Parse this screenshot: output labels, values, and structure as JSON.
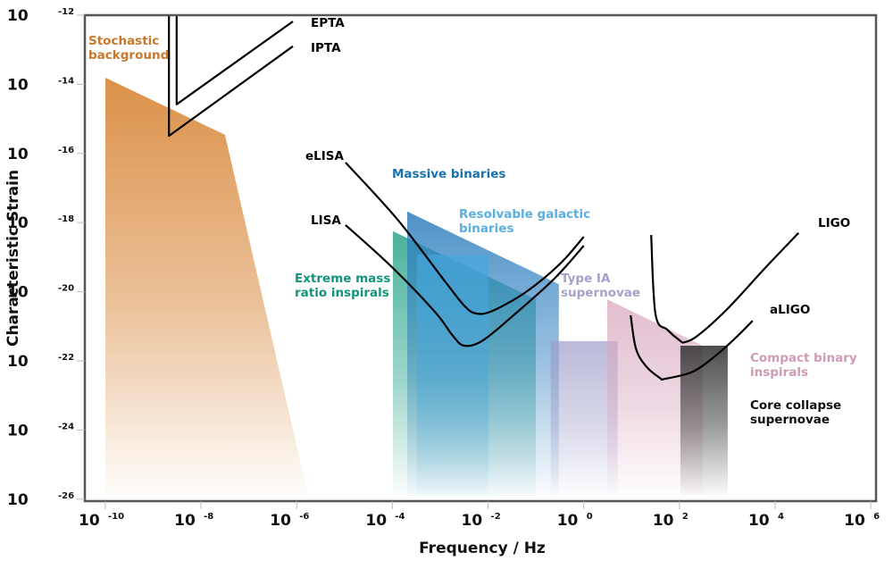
{
  "chart_data": {
    "type": "area",
    "title": "",
    "xlabel": "Frequency / Hz",
    "ylabel": "Characteristic Strain",
    "xscale": "log",
    "yscale": "log",
    "xlim_log10": [
      -10.45,
      6
    ],
    "ylim_log10": [
      -26,
      -12
    ],
    "grid": false,
    "x_ticks": [
      {
        "base": "10",
        "exp": "-10",
        "log10": -10
      },
      {
        "base": "10",
        "exp": "-8",
        "log10": -8
      },
      {
        "base": "10",
        "exp": "-6",
        "log10": -6
      },
      {
        "base": "10",
        "exp": "-4",
        "log10": -4
      },
      {
        "base": "10",
        "exp": "-2",
        "log10": -2
      },
      {
        "base": "10",
        "exp": "0",
        "log10": 0
      },
      {
        "base": "10",
        "exp": "2",
        "log10": 2
      },
      {
        "base": "10",
        "exp": "4",
        "log10": 4
      },
      {
        "base": "10",
        "exp": "6",
        "log10": 6
      }
    ],
    "y_ticks": [
      {
        "base": "10",
        "exp": "-12",
        "log10": -12
      },
      {
        "base": "10",
        "exp": "-14",
        "log10": -14
      },
      {
        "base": "10",
        "exp": "-16",
        "log10": -16
      },
      {
        "base": "10",
        "exp": "-18",
        "log10": -18
      },
      {
        "base": "10",
        "exp": "-20",
        "log10": -20
      },
      {
        "base": "10",
        "exp": "-22",
        "log10": -22
      },
      {
        "base": "10",
        "exp": "-24",
        "log10": -24
      },
      {
        "base": "10",
        "exp": "-26",
        "log10": -26
      }
    ],
    "sources": [
      {
        "name": "Stochastic background",
        "label_lines": [
          "Stochastic",
          "background"
        ],
        "color": "#d98b3f",
        "label_color": "#c8782a",
        "polygon_log10": [
          [
            -10,
            -13.81
          ],
          [
            -7.5,
            -15.46
          ],
          [
            -5.76,
            -25.9
          ],
          [
            -10,
            -25.9
          ]
        ]
      },
      {
        "name": "Extreme mass ratio inspirals",
        "label_lines": [
          "Extreme mass",
          "ratio inspirals"
        ],
        "color": "#2aa58a",
        "label_color": "#13957a",
        "polygon_log10": [
          [
            -3.99,
            -18.25
          ],
          [
            -1.0,
            -20.22
          ],
          [
            -1.0,
            -25.9
          ],
          [
            -3.99,
            -25.9
          ]
        ]
      },
      {
        "name": "Massive binaries",
        "label_lines": [
          "Massive binaries"
        ],
        "color": "#2f7fbf",
        "label_color": "#1a72ad",
        "polygon_log10": [
          [
            -3.69,
            -17.68
          ],
          [
            -0.52,
            -19.78
          ],
          [
            -0.52,
            -25.9
          ],
          [
            -3.69,
            -25.9
          ]
        ]
      },
      {
        "name": "Resolvable galactic binaries",
        "label_lines": [
          "Resolvable galactic",
          "binaries"
        ],
        "color": "#45a6dc",
        "label_color": "#5aaee0",
        "polygon_log10": [
          [
            -3.49,
            -18.93
          ],
          [
            -1.99,
            -18.93
          ],
          [
            -1.99,
            -25.9
          ],
          [
            -3.49,
            -25.9
          ]
        ]
      },
      {
        "name": "Type IA supernovae",
        "label_lines": [
          "Type IA",
          "supernovae"
        ],
        "color": "#9d9cc9",
        "label_color": "#a3a2cc",
        "polygon_log10": [
          [
            -0.69,
            -21.43
          ],
          [
            0.71,
            -21.43
          ],
          [
            0.71,
            -25.9
          ],
          [
            -0.69,
            -25.9
          ]
        ]
      },
      {
        "name": "Compact binary inspirals",
        "label_lines": [
          "Compact binary",
          "inspirals"
        ],
        "color": "#d7a6bd",
        "label_color": "#cf9ab5",
        "polygon_log10": [
          [
            0.49,
            -20.22
          ],
          [
            2.49,
            -21.56
          ],
          [
            2.49,
            -25.9
          ],
          [
            0.49,
            -25.9
          ]
        ]
      },
      {
        "name": "Core collapse supernovae",
        "label_lines": [
          "Core collapse",
          "supernovae"
        ],
        "color": "#3a3a3a",
        "label_color": "#111111",
        "polygon_log10": [
          [
            2.02,
            -21.56
          ],
          [
            3.01,
            -21.56
          ],
          [
            3.01,
            -25.9
          ],
          [
            2.02,
            -25.9
          ]
        ]
      }
    ],
    "detectors": [
      {
        "name": "EPTA",
        "points_log10": [
          [
            -8.51,
            -12.0
          ],
          [
            -8.51,
            -14.58
          ],
          [
            -6.08,
            -12.18
          ]
        ]
      },
      {
        "name": "IPTA",
        "points_log10": [
          [
            -8.67,
            -12.0
          ],
          [
            -8.67,
            -15.49
          ],
          [
            -6.08,
            -12.9
          ]
        ]
      },
      {
        "name": "eLISA",
        "points_log10": [
          [
            -4.98,
            -16.26
          ],
          [
            -3.9,
            -17.9
          ],
          [
            -2.9,
            -19.7
          ],
          [
            -2.5,
            -20.4
          ],
          [
            -2.25,
            -20.63
          ],
          [
            -1.9,
            -20.55
          ],
          [
            -1.2,
            -20.0
          ],
          [
            -0.5,
            -19.2
          ],
          [
            0.0,
            -18.41
          ]
        ]
      },
      {
        "name": "LISA",
        "points_log10": [
          [
            -4.98,
            -18.07
          ],
          [
            -4.0,
            -19.3
          ],
          [
            -3.1,
            -20.6
          ],
          [
            -2.75,
            -21.25
          ],
          [
            -2.5,
            -21.56
          ],
          [
            -2.1,
            -21.4
          ],
          [
            -1.4,
            -20.6
          ],
          [
            -0.6,
            -19.6
          ],
          [
            0.0,
            -18.67
          ]
        ]
      },
      {
        "name": "LIGO",
        "points_log10": [
          [
            1.41,
            -18.36
          ],
          [
            1.5,
            -20.66
          ],
          [
            1.75,
            -21.1
          ],
          [
            2.0,
            -21.4
          ],
          [
            2.11,
            -21.46
          ],
          [
            2.4,
            -21.25
          ],
          [
            3.0,
            -20.5
          ],
          [
            3.8,
            -19.3
          ],
          [
            4.49,
            -18.3
          ]
        ]
      },
      {
        "name": "aLIGO",
        "points_log10": [
          [
            0.98,
            -20.68
          ],
          [
            1.09,
            -21.64
          ],
          [
            1.3,
            -22.15
          ],
          [
            1.6,
            -22.5
          ],
          [
            1.7,
            -22.52
          ],
          [
            2.3,
            -22.3
          ],
          [
            2.8,
            -21.8
          ],
          [
            3.2,
            -21.3
          ],
          [
            3.53,
            -20.84
          ]
        ]
      }
    ]
  },
  "axes": {
    "xlabel": "Frequency / Hz",
    "ylabel": "Characteristic Strain"
  }
}
